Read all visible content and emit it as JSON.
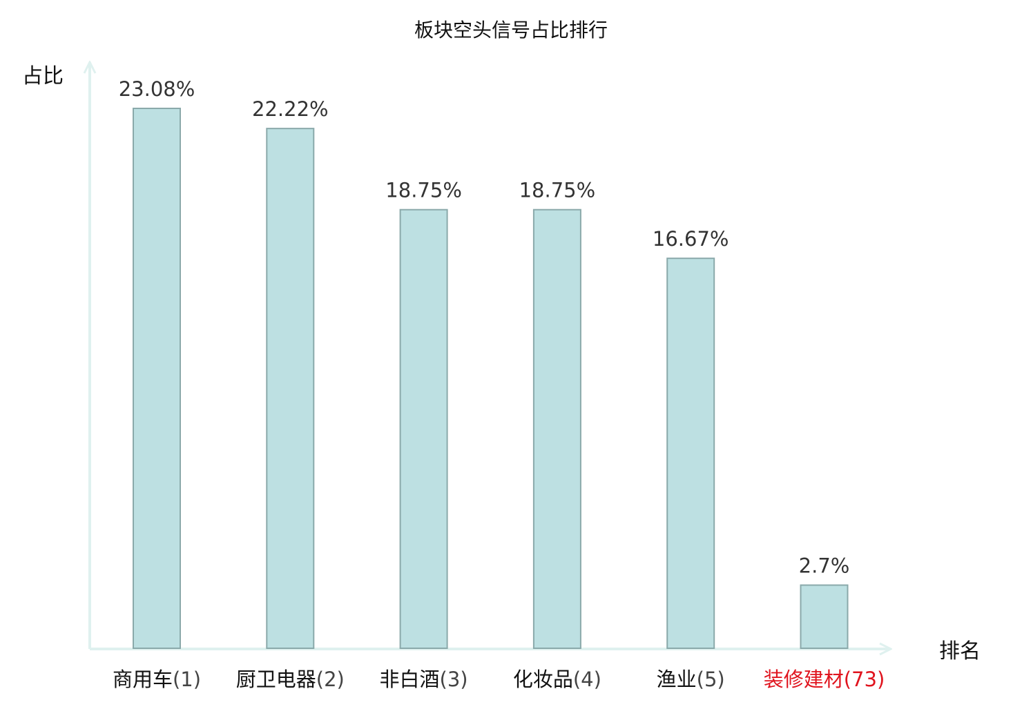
{
  "chart_data": {
    "type": "bar",
    "title": "板块空头信号占比排行",
    "ylabel": "占比",
    "xlabel": "排名",
    "categories": [
      "商用车",
      "厨卫电器",
      "非白酒",
      "化妆品",
      "渔业",
      "装修建材"
    ],
    "ranks": [
      "(1)",
      "(2)",
      "(3)",
      "(4)",
      "(5)",
      "(73)"
    ],
    "values": [
      23.08,
      22.22,
      18.75,
      18.75,
      16.67,
      2.7
    ],
    "value_labels": [
      "23.08%",
      "22.22%",
      "18.75%",
      "18.75%",
      "16.67%",
      "2.7%"
    ],
    "highlighted_index": 5,
    "ylim": [
      0,
      23.08
    ],
    "grid": false,
    "legend": "none"
  },
  "colors": {
    "bar_fill": "#bde0e2",
    "bar_stroke": "#8aa9aa",
    "axis": "#dff1ef",
    "text": "#111111",
    "rank_text": "#444444",
    "value_text": "#333333",
    "highlight": "#e0141e"
  }
}
